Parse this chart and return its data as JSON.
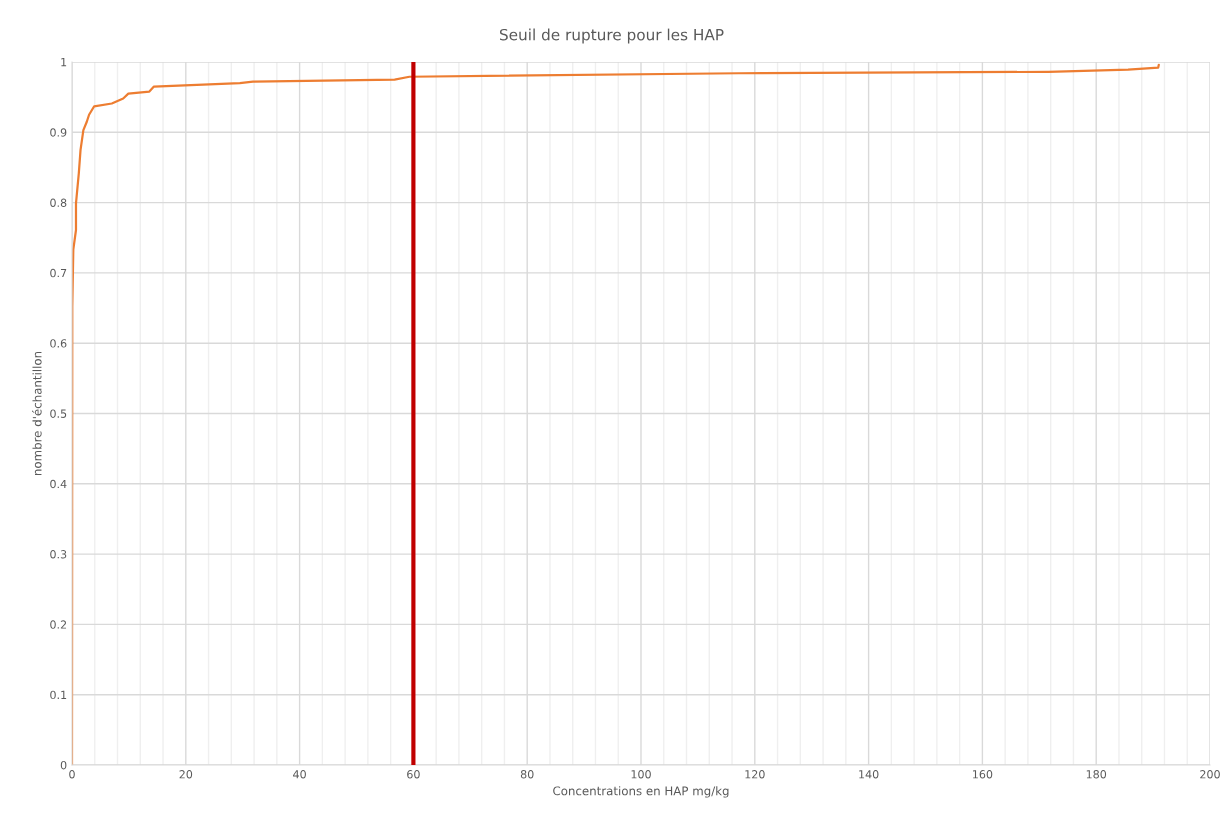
{
  "chart_data": {
    "type": "line",
    "title": "Seuil de rupture pour les HAP",
    "xlabel": "Concentrations en HAP mg/kg",
    "ylabel": "nombre d'échantillon",
    "series": [
      {
        "color": "#ed7d31",
        "x": [
          0,
          0.05,
          0.23,
          0.7,
          0.7,
          1.2,
          1.5,
          2.0,
          2.6,
          3.0,
          3.9,
          7.0,
          9.0,
          9.9,
          13.6,
          14.4,
          29.5,
          31.8,
          56.7,
          59.3,
          117.2,
          171.6,
          185.6,
          190.9,
          191
        ],
        "values": [
          0,
          0.652,
          0.733,
          0.761,
          0.799,
          0.842,
          0.875,
          0.903,
          0.915,
          0.925,
          0.937,
          0.941,
          0.948,
          0.955,
          0.958,
          0.965,
          0.97,
          0.972,
          0.975,
          0.979,
          0.984,
          0.986,
          0.989,
          0.992,
          0.996
        ]
      }
    ],
    "xlim": [
      0,
      200
    ],
    "xticks": [
      0,
      20,
      40,
      60,
      80,
      100,
      120,
      140,
      160,
      180,
      200
    ],
    "ylim": [
      0,
      1
    ],
    "yticks": [
      0,
      0.1,
      0.2,
      0.3,
      0.4,
      0.5,
      0.6,
      0.7,
      0.8,
      0.9,
      1
    ],
    "ref_lines": [
      {
        "axis": "x",
        "value": 60,
        "color": "#c00000"
      }
    ],
    "grid": true,
    "legend": false
  }
}
